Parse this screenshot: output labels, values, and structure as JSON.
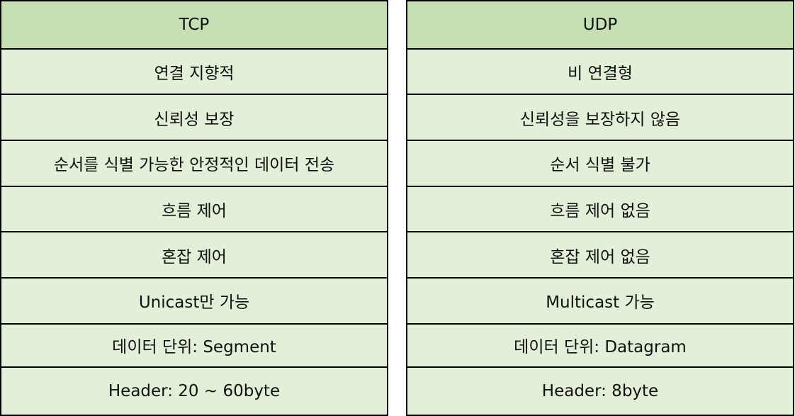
{
  "tcp": {
    "header": "TCP",
    "rows": [
      "연결 지향적",
      "신뢰성 보장",
      "순서를 식별 가능한 안정적인 데이터 전송",
      "흐름 제어",
      "혼잡 제어",
      "Unicast만 가능",
      "데이터 단위: Segment",
      "Header: 20 ~ 60byte"
    ]
  },
  "udp": {
    "header": "UDP",
    "rows": [
      "비 연결형",
      "신뢰성을 보장하지 않음",
      "순서 식별 불가",
      "흐름 제어 없음",
      "혼잡 제어 없음",
      "Multicast 가능",
      "데이터 단위: Datagram",
      "Header: 8byte"
    ]
  },
  "colors": {
    "header_bg": "#c6e0b4",
    "cell_bg": "#e2efd9",
    "border": "#000000"
  }
}
